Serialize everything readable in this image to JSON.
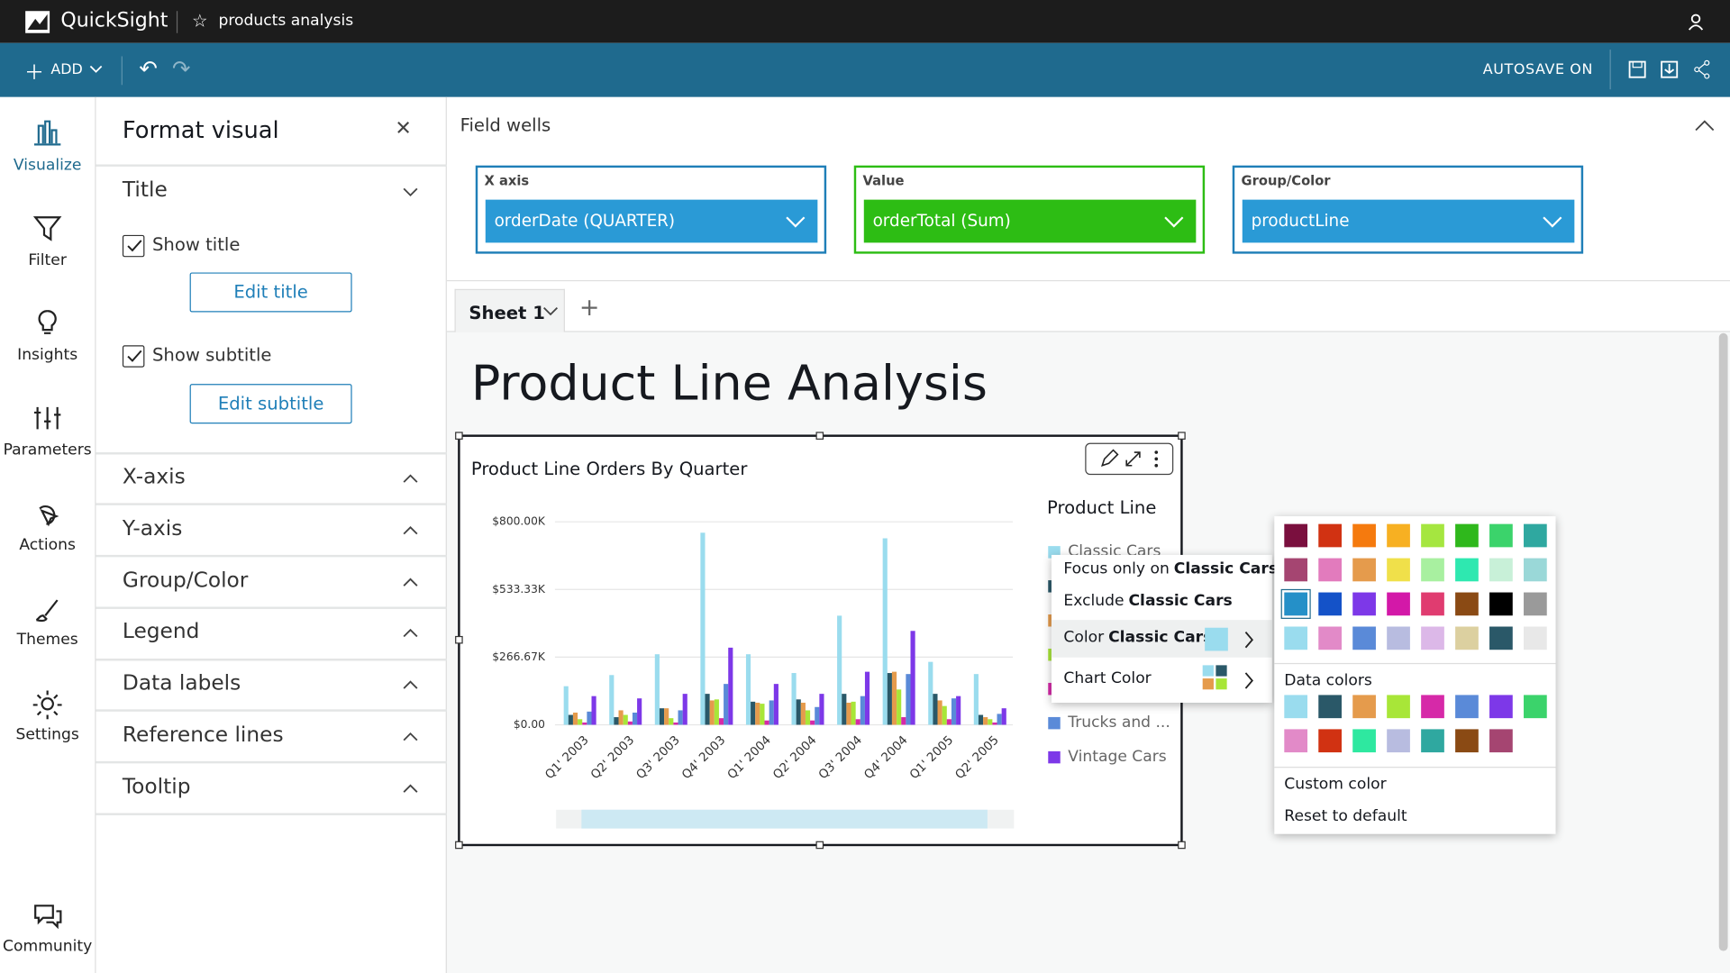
{
  "app": {
    "brand": "QuickSight",
    "analysis": "products analysis"
  },
  "toolbar": {
    "add": "ADD",
    "autosave": "AUTOSAVE ON"
  },
  "nav": [
    "Visualize",
    "Filter",
    "Insights",
    "Parameters",
    "Actions",
    "Themes",
    "Settings",
    "Community"
  ],
  "format_panel": {
    "title": "Format visual",
    "sections": [
      "Title",
      "X-axis",
      "Y-axis",
      "Group/Color",
      "Legend",
      "Data labels",
      "Reference lines",
      "Tooltip"
    ],
    "show_title": "Show title",
    "edit_title": "Edit title",
    "show_subtitle": "Show subtitle",
    "edit_subtitle": "Edit subtitle"
  },
  "field_wells": {
    "title": "Field wells",
    "wells": [
      {
        "label": "X axis",
        "field": "orderDate (QUARTER)"
      },
      {
        "label": "Value",
        "field": "orderTotal (Sum)"
      },
      {
        "label": "Group/Color",
        "field": "productLine"
      }
    ]
  },
  "sheet": {
    "tab": "Sheet 1",
    "heading": "Product Line Analysis"
  },
  "chart_data": {
    "type": "bar",
    "title": "Product Line Orders By Quarter",
    "legend_title": "Product Line",
    "categories": [
      "Q1' 2003",
      "Q2' 2003",
      "Q3' 2003",
      "Q4' 2003",
      "Q1' 2004",
      "Q2' 2004",
      "Q3' 2004",
      "Q4' 2004",
      "Q1' 2005",
      "Q2' 2005"
    ],
    "series": [
      {
        "name": "Classic Cars",
        "color": "#9adcee",
        "values": [
          152000,
          196000,
          278000,
          757000,
          278000,
          204000,
          430000,
          735000,
          248000,
          200000
        ]
      },
      {
        "color": "#2a5868",
        "values": [
          39000,
          30000,
          65000,
          122000,
          91000,
          100000,
          122000,
          204000,
          122000,
          39000
        ]
      },
      {
        "color": "#e59b4c",
        "values": [
          48000,
          57000,
          65000,
          96000,
          87000,
          87000,
          87000,
          209000,
          96000,
          30000
        ]
      },
      {
        "color": "#a8e638",
        "values": [
          22000,
          39000,
          26000,
          100000,
          83000,
          57000,
          91000,
          139000,
          74000,
          22000
        ]
      },
      {
        "color": "#d629a8",
        "values": [
          9000,
          13000,
          9000,
          26000,
          17000,
          17000,
          22000,
          30000,
          22000,
          9000
        ]
      },
      {
        "name": "Trucks and ...",
        "color": "#5a8ad8",
        "values": [
          52000,
          48000,
          57000,
          161000,
          96000,
          70000,
          113000,
          200000,
          104000,
          43000
        ]
      },
      {
        "name": "Vintage Cars",
        "color": "#7d38e8",
        "values": [
          113000,
          104000,
          122000,
          304000,
          161000,
          122000,
          209000,
          370000,
          113000,
          65000
        ]
      }
    ],
    "ylim": [
      0,
      800000
    ],
    "yticks": [
      {
        "value": 0,
        "label": "$0.00"
      },
      {
        "value": 266666.67,
        "label": "$266.67K"
      },
      {
        "value": 533333.33,
        "label": "$533.33K"
      },
      {
        "value": 800000,
        "label": "$800.00K"
      }
    ],
    "grid": true
  },
  "context_menu": {
    "items": [
      {
        "text": "Focus only on",
        "target": "Classic Cars"
      },
      {
        "text": "Exclude",
        "target": "Classic Cars"
      },
      {
        "text": "Color",
        "target": "Classic Cars"
      },
      {
        "text": "Chart Color"
      }
    ]
  },
  "color_menu": {
    "palette": [
      "#7a0f3e",
      "#d13212",
      "#f57a0e",
      "#f7b022",
      "#a5e640",
      "#2fb81c",
      "#3bd36b",
      "#2fa8a0",
      "#a54571",
      "#e27bbd",
      "#e59b4c",
      "#f0e04a",
      "#a8f0a0",
      "#2ee8b0",
      "#c8f0d8",
      "#9ad8d8",
      "#2590c8",
      "#1452c8",
      "#7d38e8",
      "#d318a8",
      "#e03c70",
      "#8a4a14",
      "#000000",
      "#9a9a9a",
      "#9adcee",
      "#e28ac8",
      "#5a8ad8",
      "#b8bce0",
      "#dcb8e8",
      "#dcd0a0",
      "#2a5868",
      "#e8e8e8"
    ],
    "data_colors_label": "Data colors",
    "data_colors": [
      "#9adcee",
      "#2a5868",
      "#e59b4c",
      "#a8e638",
      "#d629a8",
      "#5a8ad8",
      "#7d38e8",
      "#3bd36b",
      "#e28ac8",
      "#d13212",
      "#2ee8a0",
      "#b8bce0",
      "#2fa8a0",
      "#8a4a14",
      "#a54571"
    ],
    "custom": "Custom color",
    "reset": "Reset to default"
  }
}
